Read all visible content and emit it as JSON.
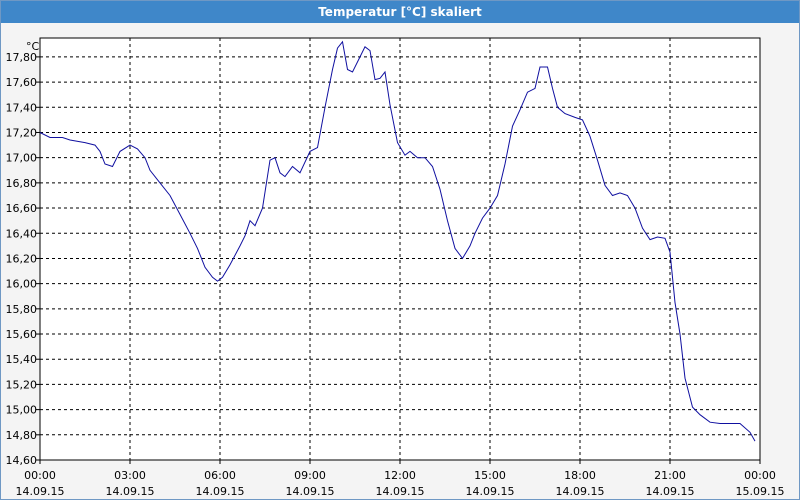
{
  "window": {
    "title": "Temperatur [°C] skaliert"
  },
  "colors": {
    "line": "#1010a0",
    "titlebar": "#3f87c9",
    "grid": "#000000",
    "background": "#ffffff"
  },
  "chart_data": {
    "type": "line",
    "title": "Temperatur [°C] skaliert",
    "ylabel": "°C",
    "xlabel": "",
    "grid": true,
    "xlim": [
      "2015-09-14T00:00",
      "2015-09-15T00:00"
    ],
    "ylim": [
      14.6,
      17.95
    ],
    "yticks": [
      "14,60",
      "14,80",
      "15,00",
      "15,20",
      "15,40",
      "15,60",
      "15,80",
      "16,00",
      "16,20",
      "16,40",
      "16,60",
      "16,80",
      "17,00",
      "17,20",
      "17,40",
      "17,60",
      "17,80"
    ],
    "xticks": [
      {
        "time": "00:00",
        "date": "14.09.15"
      },
      {
        "time": "03:00",
        "date": "14.09.15"
      },
      {
        "time": "06:00",
        "date": "14.09.15"
      },
      {
        "time": "09:00",
        "date": "14.09.15"
      },
      {
        "time": "12:00",
        "date": "14.09.15"
      },
      {
        "time": "15:00",
        "date": "14.09.15"
      },
      {
        "time": "18:00",
        "date": "14.09.15"
      },
      {
        "time": "21:00",
        "date": "14.09.15"
      },
      {
        "time": "00:00",
        "date": "15.09.15"
      }
    ],
    "series": [
      {
        "x": [
          "00:00",
          "00:20",
          "00:45",
          "01:00",
          "01:30",
          "01:50",
          "02:00",
          "02:10",
          "02:25",
          "02:40",
          "03:00",
          "03:15",
          "03:30",
          "03:40",
          "04:00",
          "04:20",
          "04:40",
          "05:00",
          "05:15",
          "05:30",
          "05:45",
          "05:55",
          "06:05",
          "06:20",
          "06:40",
          "06:50",
          "07:00",
          "07:10",
          "07:25",
          "07:40",
          "07:50",
          "08:00",
          "08:10",
          "08:25",
          "08:40",
          "09:00",
          "09:15",
          "09:30",
          "09:45",
          "09:55",
          "10:05",
          "10:15",
          "10:25",
          "10:40",
          "10:50",
          "11:00",
          "11:10",
          "11:20",
          "11:30",
          "11:40",
          "11:55",
          "12:10",
          "12:20",
          "12:35",
          "12:50",
          "13:05",
          "13:20",
          "13:35",
          "13:50",
          "14:05",
          "14:20",
          "14:30",
          "14:45",
          "15:00",
          "15:15",
          "15:30",
          "15:45",
          "16:00",
          "16:15",
          "16:30",
          "16:40",
          "16:55",
          "17:05",
          "17:15",
          "17:30",
          "17:50",
          "18:05",
          "18:20",
          "18:35",
          "18:50",
          "19:05",
          "19:20",
          "19:35",
          "19:50",
          "20:05",
          "20:20",
          "20:35",
          "20:50",
          "21:00",
          "21:10",
          "21:20",
          "21:30",
          "21:45",
          "22:00",
          "22:20",
          "22:40",
          "23:00",
          "23:20",
          "23:40",
          "23:50"
        ],
        "values": [
          17.2,
          17.16,
          17.16,
          17.14,
          17.12,
          17.1,
          17.05,
          16.95,
          16.93,
          17.05,
          17.1,
          17.07,
          17.0,
          16.9,
          16.8,
          16.7,
          16.55,
          16.4,
          16.28,
          16.13,
          16.05,
          16.02,
          16.05,
          16.15,
          16.3,
          16.38,
          16.5,
          16.46,
          16.6,
          16.98,
          17.0,
          16.88,
          16.85,
          16.93,
          16.88,
          17.05,
          17.08,
          17.4,
          17.7,
          17.87,
          17.92,
          17.7,
          17.68,
          17.8,
          17.88,
          17.85,
          17.62,
          17.63,
          17.68,
          17.42,
          17.12,
          17.02,
          17.05,
          17.0,
          17.0,
          16.93,
          16.75,
          16.5,
          16.28,
          16.2,
          16.3,
          16.4,
          16.52,
          16.6,
          16.7,
          16.95,
          17.25,
          17.38,
          17.52,
          17.55,
          17.72,
          17.72,
          17.55,
          17.4,
          17.35,
          17.32,
          17.3,
          17.17,
          16.98,
          16.78,
          16.7,
          16.72,
          16.7,
          16.6,
          16.44,
          16.35,
          16.37,
          16.36,
          16.25,
          15.85,
          15.6,
          15.25,
          15.02,
          14.96,
          14.9,
          14.89,
          14.89,
          14.89,
          14.82,
          14.75
        ]
      }
    ]
  }
}
